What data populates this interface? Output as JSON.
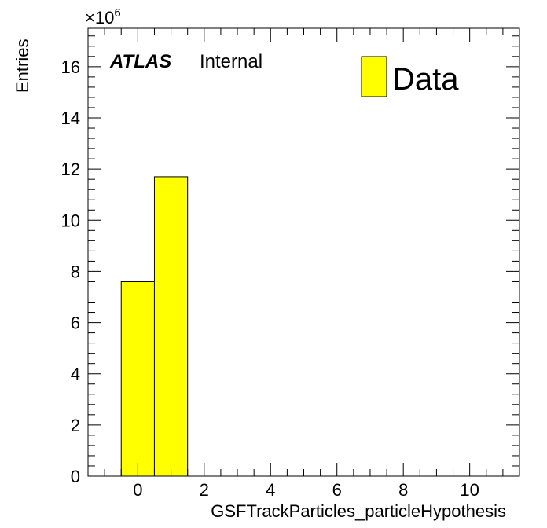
{
  "chart_data": {
    "type": "bar",
    "histogram": true,
    "bins": [
      {
        "low": -0.5,
        "high": 0.5,
        "value": 7.6
      },
      {
        "low": 0.5,
        "high": 1.5,
        "value": 11.7
      }
    ],
    "value_multiplier_label": "×10",
    "value_multiplier_exponent": "6",
    "xlabel": "GSFTrackParticles_particleHypothesis",
    "ylabel": "Entries",
    "xlim": [
      -1.5,
      11.5
    ],
    "ylim": [
      0,
      17.5
    ],
    "x_ticks": [
      0,
      2,
      4,
      6,
      8,
      10
    ],
    "y_ticks": [
      0,
      2,
      4,
      6,
      8,
      10,
      12,
      14,
      16
    ],
    "grid": false,
    "legend": {
      "position": "top-right",
      "entries": [
        {
          "label": "Data",
          "color": "#ffff00"
        }
      ]
    },
    "fill_color": "#ffff00",
    "annotations": {
      "experiment": "ATLAS",
      "status": "Internal"
    }
  }
}
